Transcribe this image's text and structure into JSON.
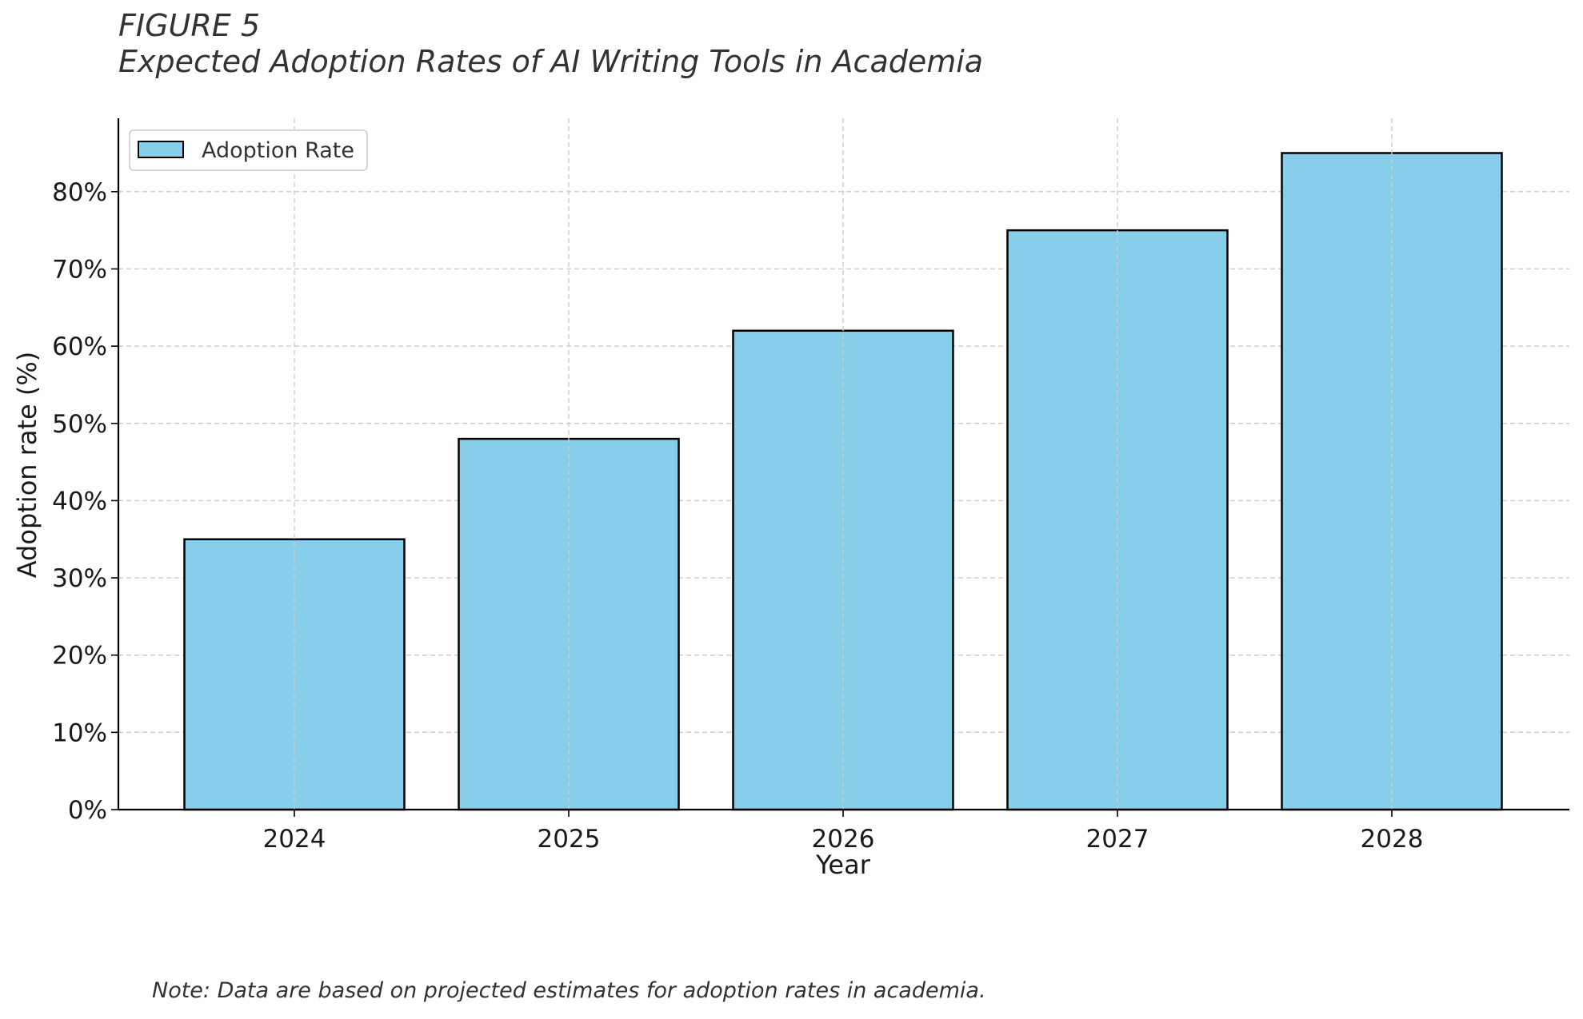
{
  "figure": {
    "label": "FIGURE 5",
    "title": "Expected Adoption Rates of AI Writing Tools in Academia",
    "note": "Note: Data are based on projected estimates for adoption rates in academia."
  },
  "chart_data": {
    "type": "bar",
    "categories": [
      "2024",
      "2025",
      "2026",
      "2027",
      "2028"
    ],
    "series": [
      {
        "name": "Adoption Rate",
        "values": [
          35,
          48,
          62,
          75,
          85
        ]
      }
    ],
    "xlabel": "Year",
    "ylabel": "Adoption rate (%)",
    "ylim": [
      0,
      89.5
    ],
    "yticks": [
      0,
      10,
      20,
      30,
      40,
      50,
      60,
      70,
      80
    ],
    "ytick_labels": [
      "0%",
      "10%",
      "20%",
      "30%",
      "40%",
      "50%",
      "60%",
      "70%",
      "80%"
    ],
    "grid": true,
    "legend": "top-left",
    "colors": {
      "bar_fill": "#87ceeb",
      "bar_edge": "#000000",
      "grid": "#cccccc"
    }
  }
}
